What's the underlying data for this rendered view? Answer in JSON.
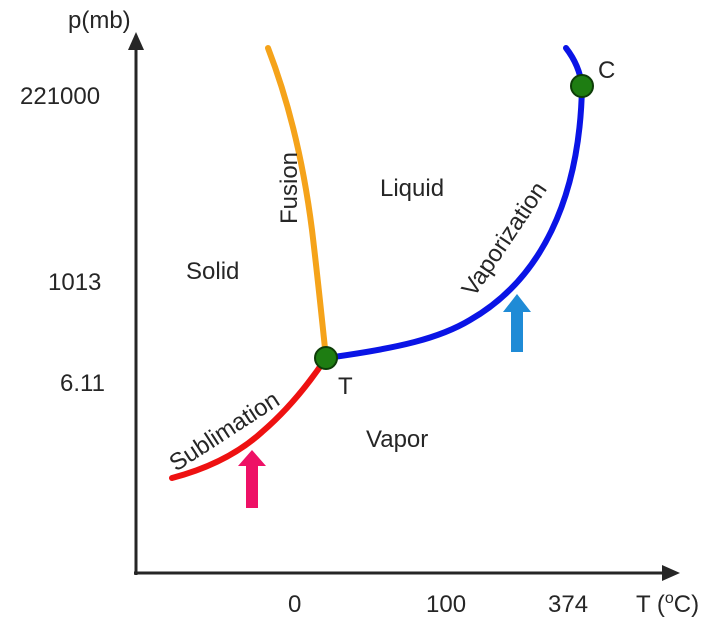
{
  "axes": {
    "y_label": "p(mb)",
    "x_label_main": "T (",
    "x_label_sup": "o",
    "x_label_end": "C)",
    "y_ticks": [
      "221000",
      "1013",
      "6.11"
    ],
    "x_ticks": [
      "0",
      "100",
      "374"
    ]
  },
  "regions": {
    "solid": "Solid",
    "liquid": "Liquid",
    "vapor": "Vapor"
  },
  "curves": {
    "fusion": {
      "label": "Fusion",
      "color": "#f5a31a"
    },
    "vaporization": {
      "label": "Vaporization",
      "color": "#0a14e6"
    },
    "sublimation": {
      "label": "Sublimation",
      "color": "#ee1111"
    }
  },
  "points": {
    "triple": "T",
    "critical": "C",
    "color": "#1e7d12"
  },
  "arrows": {
    "sublimation_color": "#ee1166",
    "vaporization_color": "#1f8bd6"
  },
  "axis_color": "#262626"
}
